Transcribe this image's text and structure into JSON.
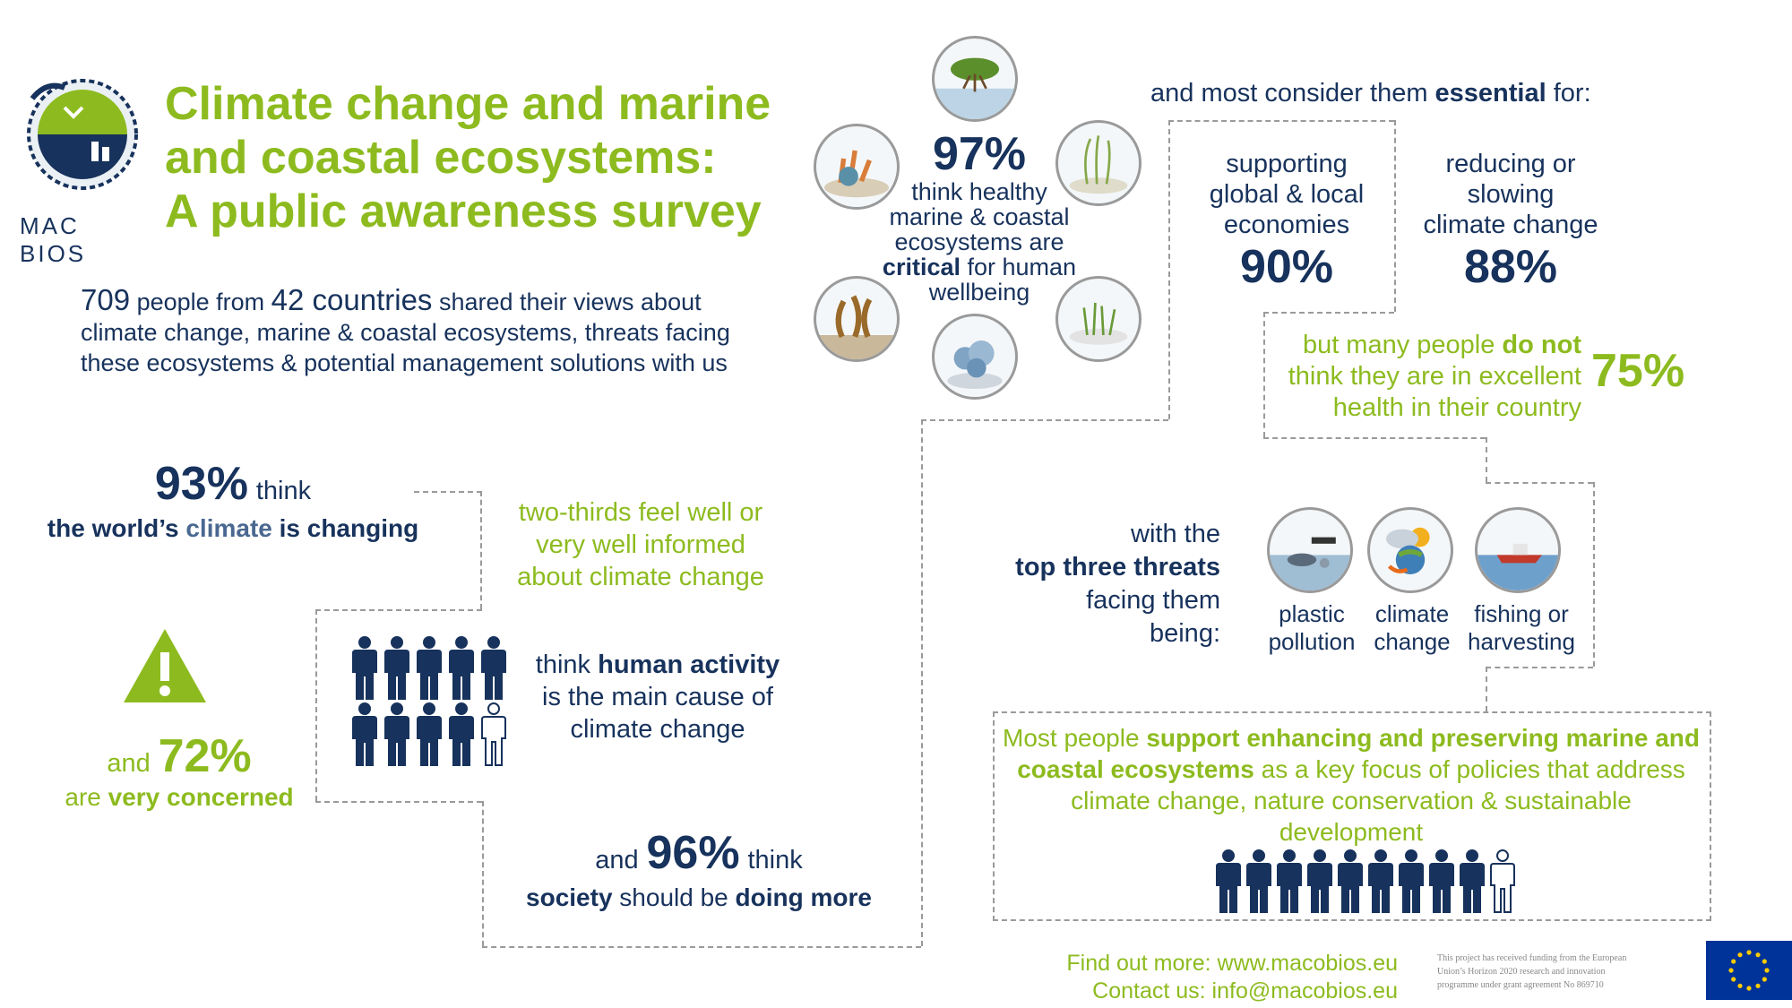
{
  "logo": {
    "text": "MAC  BIOS"
  },
  "title": {
    "line1": "Climate change and marine",
    "line2": "and coastal ecosystems:",
    "line3": "A public awareness survey"
  },
  "intro": {
    "people": "709",
    "t1": " people from ",
    "countries": "42 countries",
    "t2": " shared their views about",
    "line2": "climate change, marine & coastal ecosystems, threats facing",
    "line3": "these ecosystems & potential management solutions with us"
  },
  "stat93": {
    "pct": "93%",
    "think": "think",
    "l1": "the world’s ",
    "climate": "climate",
    "l2": " is changing"
  },
  "informed": {
    "l1": "two-thirds feel well or",
    "l2": "very well informed",
    "l3": "about climate change"
  },
  "concern": {
    "and": "and",
    "pct": "72%",
    "are": "are ",
    "very": "very concerned"
  },
  "human": {
    "think": "think ",
    "bold": "human activity",
    "l2": "is the main cause of",
    "l3": "climate change"
  },
  "stat96": {
    "and": "and",
    "pct": "96%",
    "think": "think",
    "society": "society",
    "mid": " should be ",
    "doing": "doing more"
  },
  "stat97": {
    "pct": "97%",
    "l1": "think healthy",
    "l2": "marine & coastal",
    "l3": "ecosystems are",
    "critical": "critical",
    "l4": " for human",
    "l5": "wellbeing"
  },
  "essential": {
    "pre": "and most consider them ",
    "bold": "essential",
    "post": " for:"
  },
  "econ": {
    "l1": "supporting",
    "l2": "global & local",
    "l3": "economies",
    "pct": "90%"
  },
  "climate_red": {
    "l1": "reducing or",
    "l2": "slowing",
    "l3": "climate change",
    "pct": "88%"
  },
  "health": {
    "pre": "but many people ",
    "bold": "do not",
    "l2": "think they are in excellent",
    "l3": "health in their country",
    "pct": "75%"
  },
  "threats": {
    "l1": "with the",
    "l2": "top three threats",
    "l3": "facing them",
    "l4": "being:",
    "items": [
      {
        "l1": "plastic",
        "l2": "pollution",
        "icon": "plastic-pollution-icon"
      },
      {
        "l1": "climate",
        "l2": "change",
        "icon": "climate-change-icon"
      },
      {
        "l1": "fishing or",
        "l2": "harvesting",
        "icon": "fishing-boat-icon"
      }
    ]
  },
  "support": {
    "pre": "Most people ",
    "bold1": "support enhancing and preserving marine and",
    "bold2": "coastal ecosystems",
    "mid": " as a key focus of policies that address",
    "l3": "climate change, nature conservation & sustainable",
    "l4": "development"
  },
  "footer": {
    "more": "Find out more: www.macobios.eu",
    "contact": "Contact us: info@macobios.eu",
    "funding1": "This project has received funding from the European",
    "funding2": "Union’s Horizon 2020 research and innovation",
    "funding3": "programme under grant agreement No 869710"
  },
  "colors": {
    "green": "#8dbb1f",
    "navy": "#17325c",
    "eu_blue": "#003399",
    "eu_star": "#ffcc00"
  }
}
